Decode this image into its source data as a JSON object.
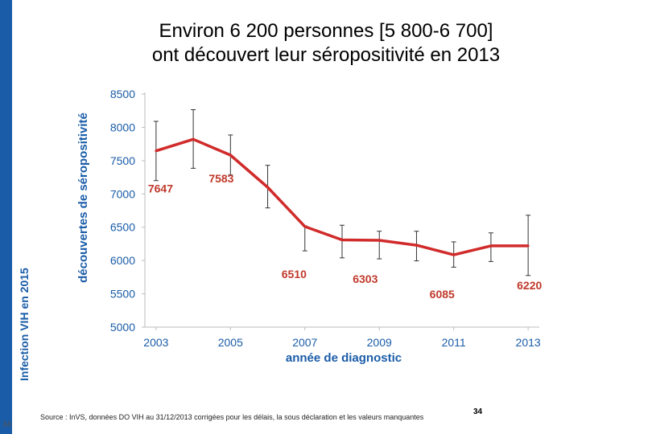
{
  "side_label": "Infection VIH en 2015",
  "title_line1": "Environ 6 200 personnes [5 800-6 700]",
  "title_line2": "ont découvert leur séropositivité en 2013",
  "source": "Source : InVS, données DO VIH au 31/12/2013 corrigées pour les délais, la sous déclaration et les valeurs manquantes",
  "page_number_bottom": "34",
  "page_number_right": "34",
  "colors": {
    "accent": "#1a5ca8",
    "line": "#d12b2b",
    "label": "#c0392b"
  },
  "chart_data": {
    "type": "line",
    "xlabel": "année de diagnostic",
    "ylabel": "découvertes de séropositivité",
    "xlim": [
      2002.7,
      2013.3
    ],
    "ylim": [
      5000,
      8500
    ],
    "yticks": [
      5000,
      5500,
      6000,
      6500,
      7000,
      7500,
      8000,
      8500
    ],
    "xticks": [
      2003,
      2005,
      2007,
      2009,
      2011,
      2013
    ],
    "grid": false,
    "series": [
      {
        "x": [
          2003,
          2004,
          2005,
          2006,
          2007,
          2008,
          2009,
          2010,
          2011,
          2012,
          2013
        ],
        "y": [
          7647,
          7820,
          7583,
          7100,
          6510,
          6310,
          6303,
          6230,
          6085,
          6220,
          6220
        ],
        "lower": [
          7200,
          7385,
          7285,
          6790,
          6145,
          6040,
          6025,
          5995,
          5900,
          5985,
          5775
        ],
        "upper": [
          8090,
          8265,
          7885,
          7430,
          6520,
          6530,
          6440,
          6440,
          6280,
          6415,
          6680
        ]
      }
    ],
    "data_labels": [
      {
        "x": 2003,
        "text": "7647"
      },
      {
        "x": 2005,
        "text": "7583"
      },
      {
        "x": 2007,
        "text": "6510"
      },
      {
        "x": 2009,
        "text": "6303"
      },
      {
        "x": 2011,
        "text": "6085"
      },
      {
        "x": 2013,
        "text": "6220"
      }
    ]
  }
}
